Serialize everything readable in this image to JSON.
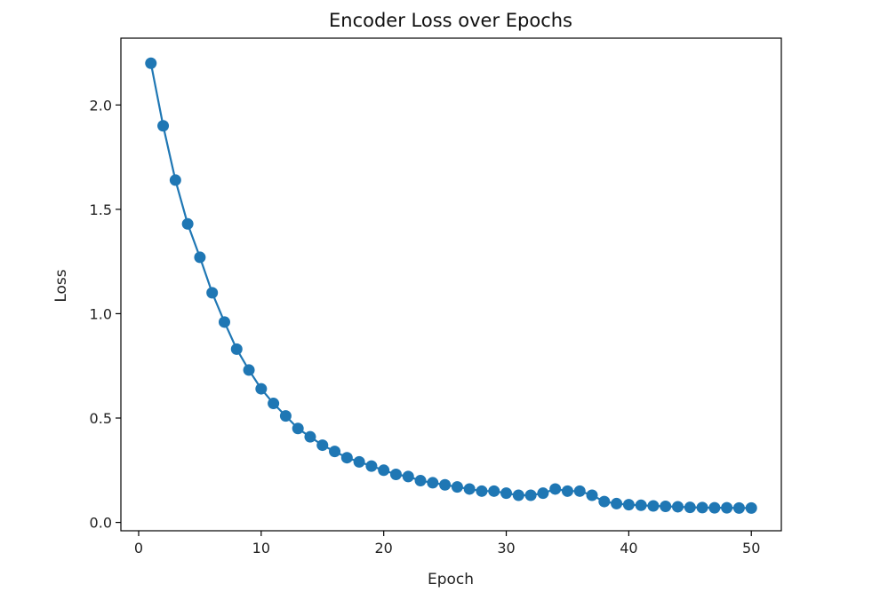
{
  "chart_data": {
    "type": "line",
    "title": "Encoder Loss over Epochs",
    "xlabel": "Epoch",
    "ylabel": "Loss",
    "xlim": [
      -1.45,
      52.45
    ],
    "ylim": [
      -0.04,
      2.32
    ],
    "xticks": [
      0,
      10,
      20,
      30,
      40,
      50
    ],
    "yticks": [
      0.0,
      0.5,
      1.0,
      1.5,
      2.0
    ],
    "xtick_labels": [
      "0",
      "10",
      "20",
      "30",
      "40",
      "50"
    ],
    "ytick_labels": [
      "0.0",
      "0.5",
      "1.0",
      "1.5",
      "2.0"
    ],
    "grid": false,
    "legend": "none",
    "series": [
      {
        "color": "#1f77b4",
        "marker": "circle",
        "x": [
          1,
          2,
          3,
          4,
          5,
          6,
          7,
          8,
          9,
          10,
          11,
          12,
          13,
          14,
          15,
          16,
          17,
          18,
          19,
          20,
          21,
          22,
          23,
          24,
          25,
          26,
          27,
          28,
          29,
          30,
          31,
          32,
          33,
          34,
          35,
          36,
          37,
          38,
          39,
          40,
          41,
          42,
          43,
          44,
          45,
          46,
          47,
          48,
          49,
          50
        ],
        "y": [
          2.2,
          1.9,
          1.64,
          1.43,
          1.27,
          1.1,
          0.96,
          0.83,
          0.73,
          0.64,
          0.57,
          0.51,
          0.45,
          0.41,
          0.37,
          0.34,
          0.31,
          0.29,
          0.27,
          0.25,
          0.23,
          0.22,
          0.2,
          0.19,
          0.18,
          0.17,
          0.16,
          0.15,
          0.15,
          0.14,
          0.13,
          0.13,
          0.14,
          0.16,
          0.15,
          0.15,
          0.13,
          0.1,
          0.09,
          0.085,
          0.082,
          0.079,
          0.077,
          0.075,
          0.072,
          0.071,
          0.07,
          0.07,
          0.069,
          0.069
        ]
      }
    ]
  }
}
